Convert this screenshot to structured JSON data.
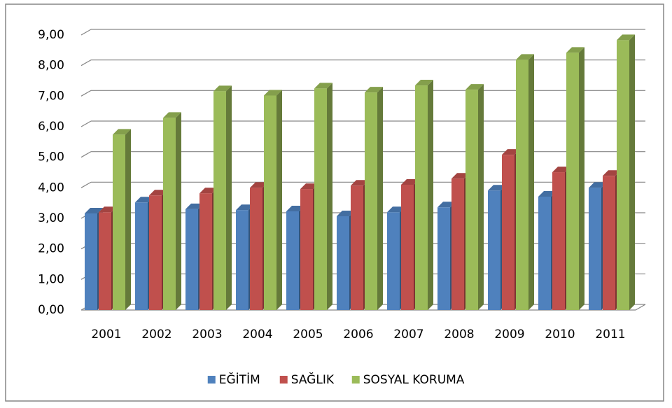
{
  "chart_data": {
    "type": "bar",
    "categories": [
      "2001",
      "2002",
      "2003",
      "2004",
      "2005",
      "2006",
      "2007",
      "2008",
      "2009",
      "2010",
      "2011"
    ],
    "series": [
      {
        "name": "EĞİTİM",
        "color": "#4f81bd",
        "values": [
          3.16,
          3.52,
          3.3,
          3.27,
          3.23,
          3.07,
          3.2,
          3.36,
          3.91,
          3.71,
          4.0
        ]
      },
      {
        "name": "SAĞLIK",
        "color": "#c0504d",
        "values": [
          3.2,
          3.75,
          3.82,
          4.0,
          3.96,
          4.07,
          4.1,
          4.3,
          5.08,
          4.51,
          4.39
        ]
      },
      {
        "name": "SOSYAL KORUMA",
        "color": "#9bbb59",
        "values": [
          5.74,
          6.29,
          7.16,
          7.02,
          7.25,
          7.12,
          7.35,
          7.21,
          8.19,
          8.42,
          8.83
        ]
      }
    ],
    "ylim": [
      0,
      9
    ],
    "yticks": [
      {
        "value": 0,
        "label": "0,00"
      },
      {
        "value": 1,
        "label": "1,00"
      },
      {
        "value": 2,
        "label": "2,00"
      },
      {
        "value": 3,
        "label": "3,00"
      },
      {
        "value": 4,
        "label": "4,00"
      },
      {
        "value": 5,
        "label": "5,00"
      },
      {
        "value": 6,
        "label": "6,00"
      },
      {
        "value": 7,
        "label": "7,00"
      },
      {
        "value": 8,
        "label": "8,00"
      },
      {
        "value": 9,
        "label": "9,00"
      }
    ],
    "grid": true,
    "legend": "bottom"
  }
}
